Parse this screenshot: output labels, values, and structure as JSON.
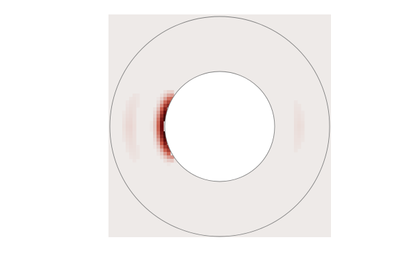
{
  "chart_data": {
    "type": "heatmap",
    "geometry": "annular",
    "x_range": [
      -1,
      1
    ],
    "y_range": [
      -1,
      1
    ],
    "r_inner": 0.5,
    "r_outer": 1.0,
    "grid": false,
    "title": "",
    "xlabel": "",
    "ylabel": "",
    "colormap": {
      "low": "#eeeae8",
      "mid": "#c85a48",
      "high": "#6a0c0c",
      "peak": "#2a0808"
    },
    "ring_color": "#808080",
    "hotspot": {
      "center_angle_deg": 180,
      "angular_halfwidth_deg": 38,
      "radial_peak": 0.5,
      "radial_width": 0.06,
      "peak_value": 1.0
    },
    "faint_features": [
      {
        "center_angle_deg": 180,
        "angular_halfwidth_deg": 30,
        "radius": 0.82,
        "value": 0.06
      },
      {
        "center_angle_deg": 0,
        "angular_halfwidth_deg": 30,
        "radius": 0.72,
        "value": 0.04
      }
    ]
  }
}
